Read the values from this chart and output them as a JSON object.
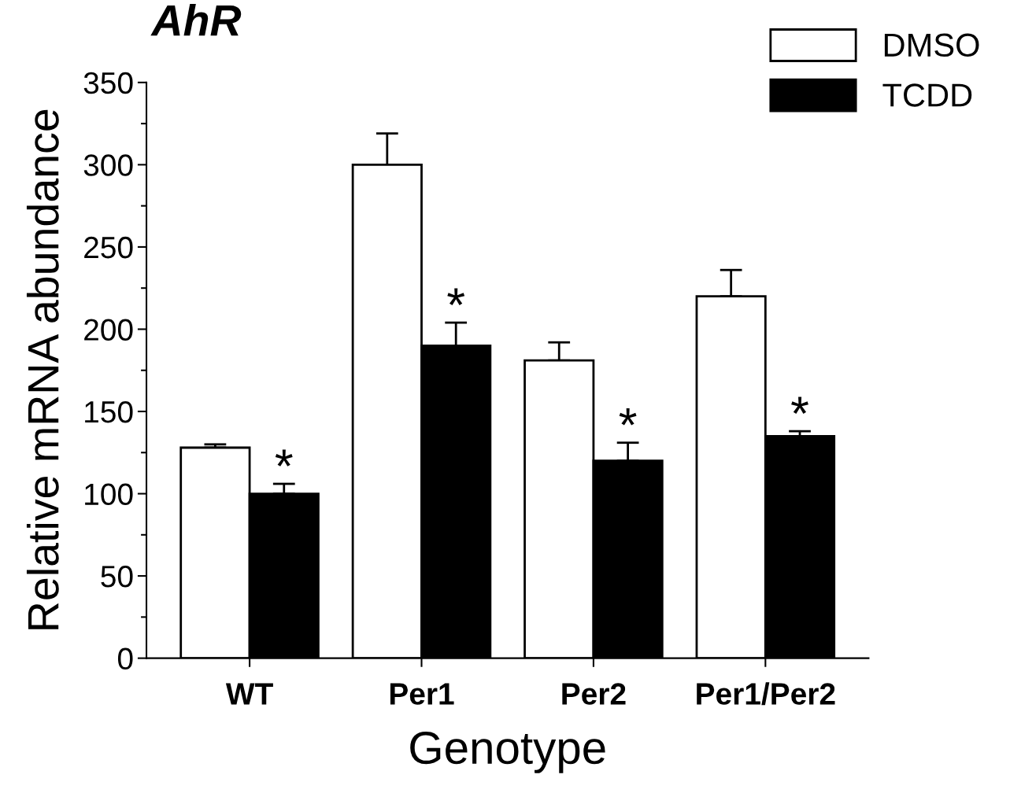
{
  "chart_data": {
    "type": "bar",
    "title": "AhR",
    "xlabel": "Genotype",
    "ylabel": "Relative mRNA abundance",
    "categories": [
      "WT",
      "Per1",
      "Per2",
      "Per1/Per2"
    ],
    "series": [
      {
        "name": "DMSO",
        "color": "#ffffff",
        "values": [
          128,
          300,
          181,
          220
        ],
        "errors": [
          [
            128,
            130
          ],
          [
            300,
            319
          ],
          [
            181,
            192
          ],
          [
            220,
            236
          ]
        ]
      },
      {
        "name": "TCDD",
        "color": "#000000",
        "values": [
          100,
          190,
          120,
          135
        ],
        "errors": [
          [
            100,
            106
          ],
          [
            190,
            204
          ],
          [
            120,
            131
          ],
          [
            135,
            138
          ]
        ]
      }
    ],
    "annotations": [
      {
        "text": "*",
        "x": "WT",
        "y": 106
      },
      {
        "text": "*",
        "x": "Per1",
        "y": 204
      },
      {
        "text": "*",
        "x": "Per2",
        "y": 131
      },
      {
        "text": "*",
        "x": "Per1/Per2",
        "y": 138
      }
    ],
    "ylim": [
      0,
      350
    ],
    "yticks": [
      0,
      50,
      100,
      150,
      200,
      250,
      300,
      350
    ],
    "grid": false,
    "legend": "top right"
  }
}
